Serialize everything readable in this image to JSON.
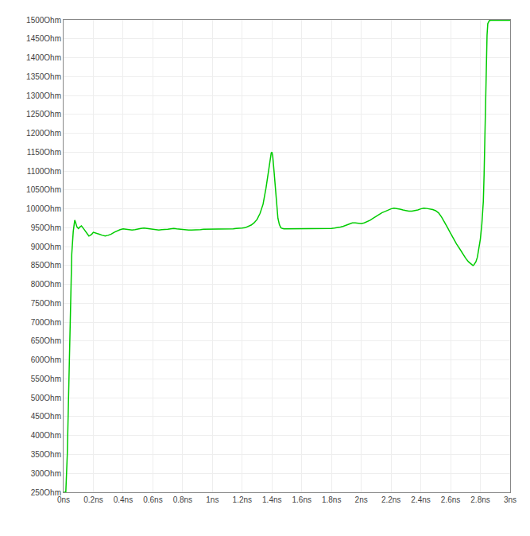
{
  "chart_data": {
    "type": "line",
    "color": "#00cc00",
    "grid": true,
    "xlim": [
      0,
      3.0
    ],
    "ylim": [
      250,
      1500
    ],
    "xticks": [
      {
        "value": 0,
        "label": "0ns"
      },
      {
        "value": 0.2,
        "label": "0.2ns"
      },
      {
        "value": 0.4,
        "label": "0.4ns"
      },
      {
        "value": 0.6,
        "label": "0.6ns"
      },
      {
        "value": 0.8,
        "label": "0.8ns"
      },
      {
        "value": 1.0,
        "label": "1ns"
      },
      {
        "value": 1.2,
        "label": "1.2ns"
      },
      {
        "value": 1.4,
        "label": "1.4ns"
      },
      {
        "value": 1.6,
        "label": "1.6ns"
      },
      {
        "value": 1.8,
        "label": "1.8ns"
      },
      {
        "value": 2.0,
        "label": "2ns"
      },
      {
        "value": 2.2,
        "label": "2.2ns"
      },
      {
        "value": 2.4,
        "label": "2.4ns"
      },
      {
        "value": 2.6,
        "label": "2.6ns"
      },
      {
        "value": 2.8,
        "label": "2.8ns"
      },
      {
        "value": 3.0,
        "label": "3ns"
      }
    ],
    "yticks": [
      {
        "value": 250,
        "label": "250Ohm"
      },
      {
        "value": 300,
        "label": "300Ohm"
      },
      {
        "value": 350,
        "label": "350Ohm"
      },
      {
        "value": 400,
        "label": "400Ohm"
      },
      {
        "value": 450,
        "label": "450Ohm"
      },
      {
        "value": 500,
        "label": "500Ohm"
      },
      {
        "value": 550,
        "label": "550Ohm"
      },
      {
        "value": 600,
        "label": "600Ohm"
      },
      {
        "value": 650,
        "label": "650Ohm"
      },
      {
        "value": 700,
        "label": "700Ohm"
      },
      {
        "value": 750,
        "label": "750Ohm"
      },
      {
        "value": 800,
        "label": "800Ohm"
      },
      {
        "value": 850,
        "label": "850Ohm"
      },
      {
        "value": 900,
        "label": "900Ohm"
      },
      {
        "value": 950,
        "label": "950Ohm"
      },
      {
        "value": 1000,
        "label": "1000Ohm"
      },
      {
        "value": 1050,
        "label": "1050Ohm"
      },
      {
        "value": 1100,
        "label": "1100Ohm"
      },
      {
        "value": 1150,
        "label": "1150Ohm"
      },
      {
        "value": 1200,
        "label": "1200Ohm"
      },
      {
        "value": 1250,
        "label": "1250Ohm"
      },
      {
        "value": 1300,
        "label": "1300Ohm"
      },
      {
        "value": 1350,
        "label": "1350Ohm"
      },
      {
        "value": 1400,
        "label": "1400Ohm"
      },
      {
        "value": 1450,
        "label": "1450Ohm"
      },
      {
        "value": 1500,
        "label": "1500Ohm"
      }
    ],
    "x": [
      0.0,
      0.015,
      0.025,
      0.035,
      0.045,
      0.055,
      0.065,
      0.07,
      0.075,
      0.08,
      0.085,
      0.09,
      0.095,
      0.1,
      0.11,
      0.12,
      0.13,
      0.14,
      0.15,
      0.16,
      0.17,
      0.18,
      0.19,
      0.2,
      0.22,
      0.24,
      0.26,
      0.28,
      0.3,
      0.32,
      0.34,
      0.36,
      0.38,
      0.4,
      0.42,
      0.44,
      0.46,
      0.48,
      0.5,
      0.52,
      0.54,
      0.56,
      0.58,
      0.6,
      0.62,
      0.64,
      0.66,
      0.68,
      0.7,
      0.72,
      0.74,
      0.76,
      0.78,
      0.8,
      0.82,
      0.84,
      0.86,
      0.88,
      0.9,
      0.92,
      0.94,
      0.96,
      0.98,
      1.0,
      1.02,
      1.04,
      1.06,
      1.08,
      1.1,
      1.12,
      1.14,
      1.16,
      1.18,
      1.2,
      1.22,
      1.24,
      1.26,
      1.28,
      1.3,
      1.32,
      1.34,
      1.36,
      1.38,
      1.395,
      1.4,
      1.405,
      1.41,
      1.42,
      1.43,
      1.44,
      1.45,
      1.46,
      1.47,
      1.48,
      1.5,
      1.52,
      1.54,
      1.56,
      1.58,
      1.6,
      1.62,
      1.64,
      1.66,
      1.68,
      1.7,
      1.72,
      1.74,
      1.76,
      1.78,
      1.8,
      1.82,
      1.84,
      1.86,
      1.88,
      1.9,
      1.92,
      1.94,
      1.96,
      1.98,
      2.0,
      2.02,
      2.04,
      2.06,
      2.08,
      2.1,
      2.12,
      2.14,
      2.16,
      2.18,
      2.2,
      2.22,
      2.24,
      2.26,
      2.28,
      2.3,
      2.32,
      2.34,
      2.36,
      2.38,
      2.4,
      2.42,
      2.44,
      2.46,
      2.48,
      2.5,
      2.52,
      2.54,
      2.56,
      2.58,
      2.6,
      2.62,
      2.64,
      2.66,
      2.68,
      2.7,
      2.72,
      2.74,
      2.75,
      2.755,
      2.76,
      2.77,
      2.78,
      2.79,
      2.8,
      2.81,
      2.82,
      2.825,
      2.83,
      2.835,
      2.84,
      2.845,
      2.85,
      2.86,
      2.87,
      2.9,
      3.0
    ],
    "values": [
      250,
      250,
      350,
      550,
      750,
      880,
      940,
      960,
      970,
      965,
      958,
      952,
      950,
      948,
      952,
      955,
      950,
      945,
      938,
      933,
      928,
      930,
      933,
      938,
      936,
      933,
      930,
      928,
      930,
      933,
      938,
      942,
      945,
      947,
      946,
      945,
      944,
      945,
      947,
      948,
      949,
      948,
      947,
      946,
      945,
      944,
      945,
      945,
      946,
      947,
      948,
      947,
      946,
      945,
      945,
      944,
      944,
      944,
      945,
      945,
      946,
      946,
      947,
      947,
      947,
      947,
      947,
      947,
      947,
      947,
      947,
      948,
      948,
      949,
      950,
      953,
      957,
      963,
      972,
      988,
      1012,
      1055,
      1105,
      1148,
      1150,
      1140,
      1118,
      1065,
      1010,
      975,
      958,
      950,
      948,
      947,
      947,
      947,
      947,
      947,
      947,
      947,
      948,
      948,
      948,
      948,
      948,
      948,
      948,
      948,
      948,
      948,
      949,
      950,
      952,
      954,
      957,
      960,
      963,
      963,
      962,
      961,
      963,
      966,
      970,
      975,
      980,
      985,
      990,
      993,
      997,
      1000,
      1002,
      1001,
      999,
      997,
      995,
      994,
      994,
      995,
      997,
      1000,
      1002,
      1001,
      1000,
      998,
      995,
      989,
      978,
      965,
      950,
      935,
      920,
      907,
      895,
      882,
      870,
      860,
      853,
      850,
      851,
      854,
      860,
      872,
      892,
      920,
      960,
      1020,
      1090,
      1180,
      1300,
      1400,
      1460,
      1490,
      1498,
      1499,
      1499,
      1499
    ]
  }
}
